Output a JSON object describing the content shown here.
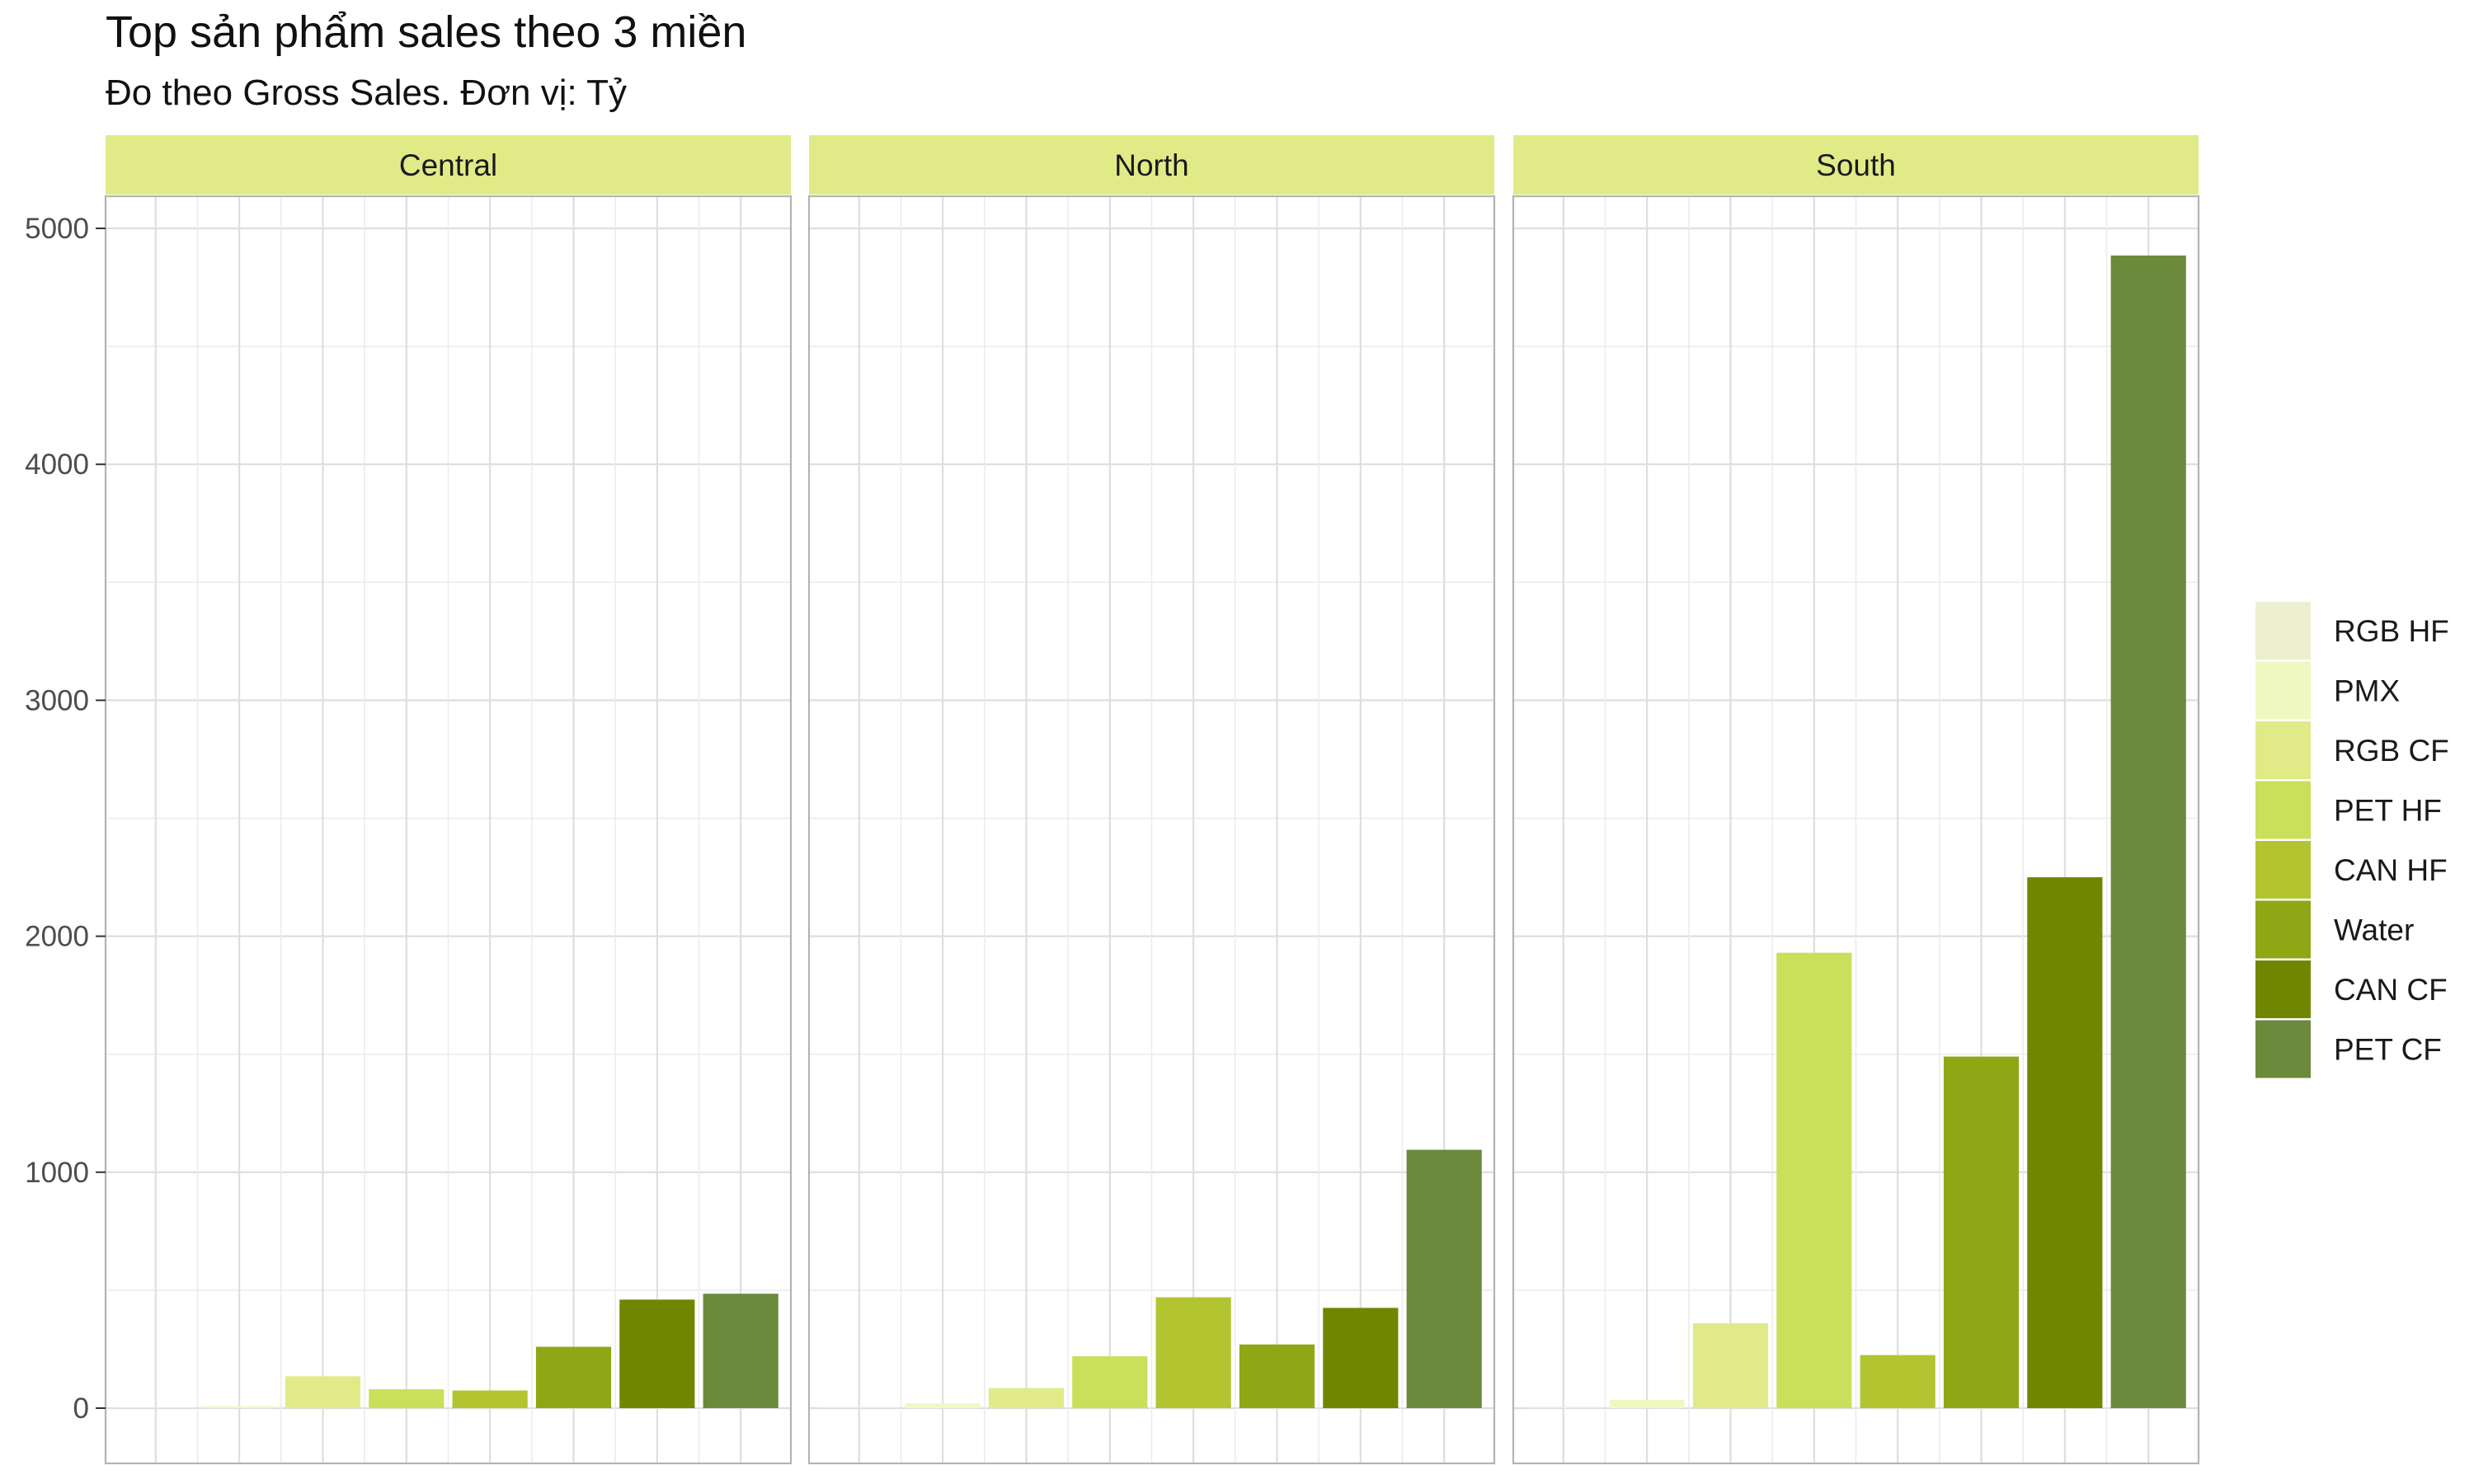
{
  "chart_data": {
    "type": "bar",
    "title": "Top sản phẩm sales theo 3 miền",
    "subtitle": "Đo theo Gross Sales. Đơn vị: Tỷ",
    "xlabel": "",
    "ylabel": "",
    "ylim": [
      0,
      5000
    ],
    "yticks": [
      "0",
      "1000",
      "2000",
      "3000",
      "4000",
      "5000"
    ],
    "grid": true,
    "legend": "right",
    "categories": [
      "RGB HF",
      "PMX",
      "RGB CF",
      "PET HF",
      "CAN HF",
      "Water",
      "CAN CF",
      "PET CF"
    ],
    "colors": [
      "#EEEED1",
      "#F0F8C1",
      "#E0EB88",
      "#CADF5A",
      "#B2C530",
      "#90A715",
      "#718600",
      "#6B8A3C"
    ],
    "facets": [
      {
        "name": "Central",
        "values": [
          3,
          8,
          135,
          80,
          75,
          260,
          460,
          485
        ]
      },
      {
        "name": "North",
        "values": [
          5,
          20,
          85,
          220,
          470,
          270,
          425,
          1095
        ]
      },
      {
        "name": "South",
        "values": [
          6,
          35,
          360,
          1930,
          225,
          1490,
          2250,
          4885
        ]
      }
    ]
  }
}
